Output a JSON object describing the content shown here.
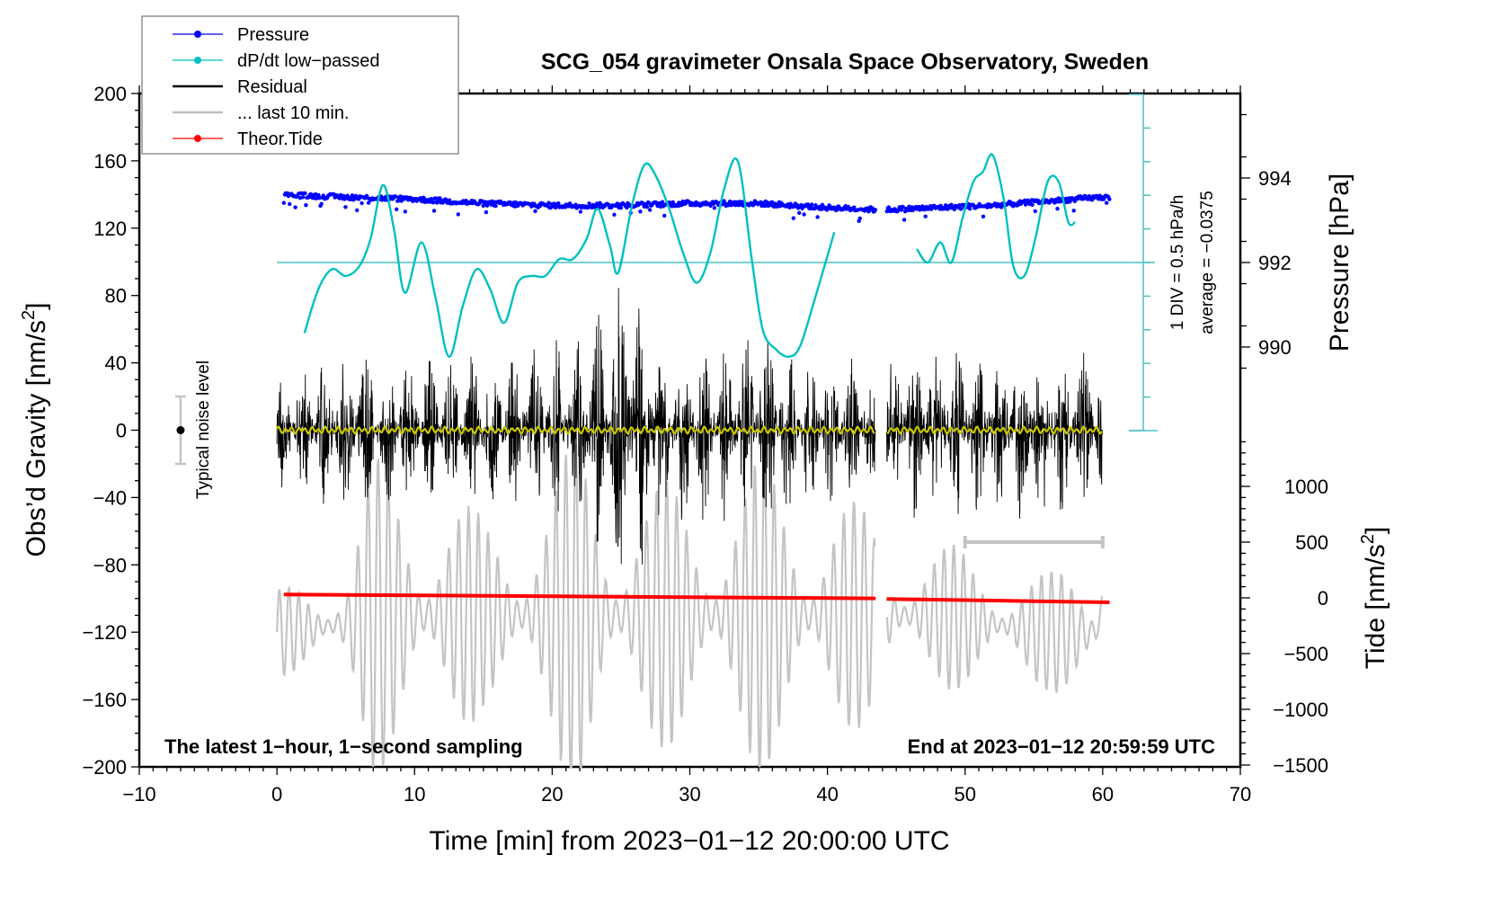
{
  "chart_data": {
    "type": "line",
    "title": "SCG_054 gravimeter Onsala Space Observatory, Sweden",
    "xlabel": "Time [min] from 2023−01−12 20:00:00 UTC",
    "ylabel_left": "Obs’d Gravity [nm/s",
    "ylabel_left_sup": "2",
    "ylabel_left_close": "]",
    "ylabel_right_pressure": "Pressure [hPa]",
    "ylabel_right_tide": "Tide [nm/s",
    "ylabel_right_tide_sup": "2",
    "ylabel_right_tide_close": "]",
    "xlim": [
      -10,
      70
    ],
    "ylim_left": [
      -200,
      200
    ],
    "pressure_lim_shown": [
      990,
      994
    ],
    "tide_lim": [
      -1500,
      1000
    ],
    "x_ticks": [
      "−10",
      "0",
      "10",
      "20",
      "30",
      "40",
      "50",
      "60",
      "70"
    ],
    "x_tick_values": [
      -10,
      0,
      10,
      20,
      30,
      40,
      50,
      60,
      70
    ],
    "y_left_ticks": [
      "200",
      "160",
      "120",
      "80",
      "40",
      "0",
      "−40",
      "−80",
      "−120",
      "−160",
      "−200"
    ],
    "y_left_tick_values": [
      200,
      160,
      120,
      80,
      40,
      0,
      -40,
      -80,
      -120,
      -160,
      -200
    ],
    "pressure_ticks": [
      "994",
      "992",
      "990"
    ],
    "pressure_tick_values": [
      994,
      992,
      990
    ],
    "tide_ticks": [
      "1000",
      "500",
      "0",
      "−500",
      "−1000",
      "−1500"
    ],
    "tide_tick_values": [
      1000,
      500,
      0,
      -500,
      -1000,
      -1500
    ],
    "grid": false,
    "legend_position": "top-left",
    "legend": [
      {
        "label": "Pressure",
        "color": "#0000ff",
        "marker": true
      },
      {
        "label": "dP/dt low−passed",
        "color": "#00c0c0",
        "marker": true
      },
      {
        "label": "Residual",
        "color": "#000000",
        "marker": false
      },
      {
        "label": "... last 10 min.",
        "color": "#c0c0c0",
        "marker": false
      },
      {
        "label": "Theor.Tide",
        "color": "#ff0000",
        "marker": true
      }
    ],
    "annotations": {
      "left_note": "The latest 1−hour, 1−second sampling",
      "right_note": "End at 2023−01−12 20:59:59 UTC",
      "noise_label": "Typical noise level",
      "noise_level": {
        "x": -7,
        "center": 0,
        "half_range": 20
      },
      "dpdt_scale": "1 DIV = 0.5 hPa/h",
      "dpdt_average": "average = −0.0375",
      "last10_bar": {
        "x_start": 50,
        "x_end": 60
      }
    },
    "data_gap_minutes": [
      43.5,
      44.3
    ],
    "series": [
      {
        "name": "Pressure",
        "color": "#0000ff",
        "units": "hPa",
        "x": [
          0.5,
          5,
          10,
          15,
          20,
          25,
          30,
          35,
          40,
          43.5,
          44.3,
          48,
          52,
          56,
          60
        ],
        "values": [
          993.6,
          993.55,
          993.5,
          993.4,
          993.35,
          993.35,
          993.4,
          993.4,
          993.3,
          993.25,
          993.25,
          993.3,
          993.35,
          993.45,
          993.55
        ]
      },
      {
        "name": "dP/dt low-passed",
        "color": "#00c0c0",
        "units": "DIV (0.5 hPa/h)",
        "x": [
          2,
          3,
          4,
          5,
          6,
          6.8,
          7.7,
          8.5,
          9.3,
          10.5,
          11.5,
          12.5,
          13.5,
          14.5,
          15.5,
          16.5,
          17.5,
          18.5,
          19.5,
          20.5,
          21.5,
          22.5,
          23.3,
          24.2,
          24.8,
          25.8,
          26.7,
          27.5,
          28.5,
          29.5,
          30.5,
          31.5,
          32.5,
          33.5,
          34.5,
          35.3,
          36.3,
          37.2,
          38,
          39,
          40.5
        ],
        "values": [
          -2.1,
          -0.8,
          -0.2,
          -0.4,
          -0.1,
          0.7,
          2.3,
          1.0,
          -0.9,
          0.6,
          -1.0,
          -2.8,
          -1.3,
          -0.2,
          -0.8,
          -1.8,
          -0.6,
          -0.4,
          -0.4,
          0.1,
          0.1,
          0.7,
          1.6,
          0.5,
          -0.3,
          1.7,
          2.9,
          2.6,
          1.6,
          0.3,
          -0.6,
          0.3,
          2.2,
          3.0,
          0.1,
          -2.0,
          -2.6,
          -2.8,
          -2.5,
          -1.2,
          0.9
        ]
      },
      {
        "name": "dP/dt low-passed (after gap)",
        "color": "#00c0c0",
        "units": "DIV (0.5 hPa/h)",
        "x": [
          46.5,
          47.3,
          48.2,
          49,
          49.8,
          50.6,
          51.3,
          52,
          52.8,
          53.5,
          54.3,
          55.1,
          56,
          56.8,
          57.5,
          58
        ],
        "values": [
          0.4,
          0.0,
          0.6,
          0.0,
          1.3,
          2.4,
          2.7,
          3.2,
          1.9,
          -0.1,
          -0.4,
          0.7,
          2.4,
          2.4,
          1.2,
          1.2
        ]
      },
      {
        "name": "Residual",
        "color": "#000000",
        "units": "nm/s^2",
        "x": [
          0,
          5,
          10,
          15,
          20,
          22,
          24,
          25,
          26.5,
          28,
          30,
          32,
          34,
          35.5,
          38,
          40,
          43.5,
          44.3,
          48,
          52,
          56,
          60
        ],
        "envelope": [
          35,
          50,
          45,
          45,
          55,
          60,
          80,
          95,
          85,
          55,
          60,
          55,
          55,
          65,
          50,
          45,
          40,
          50,
          55,
          55,
          55,
          45
        ]
      },
      {
        "name": "Residual smoothed",
        "color": "#c8c800",
        "units": "nm/s^2",
        "x": [
          0,
          60
        ],
        "values": [
          0,
          0
        ]
      },
      {
        "name": "... last 10 min.",
        "color": "#c0c0c0",
        "units": "nm/s^2",
        "x": [
          0,
          5,
          7,
          10,
          15,
          20,
          22,
          25,
          28,
          30,
          35,
          40,
          43.5,
          44.3,
          48,
          52,
          56,
          59.5,
          60
        ],
        "envelope": [
          25,
          40,
          95,
          90,
          60,
          85,
          110,
          85,
          80,
          80,
          95,
          80,
          60,
          50,
          45,
          40,
          35,
          50,
          70
        ],
        "center": [
          -120,
          -115,
          -110,
          -110,
          -110,
          -110,
          -110,
          -110,
          -110,
          -110,
          -110,
          -110,
          -110,
          -110,
          -110,
          -115,
          -120,
          -120,
          -105
        ]
      },
      {
        "name": "Theor.Tide",
        "color": "#ff0000",
        "units": "nm/s^2 (tide axis)",
        "x": [
          0.5,
          43.5,
          44.3,
          60.5
        ],
        "values": [
          30,
          -5,
          -10,
          -40
        ]
      }
    ]
  }
}
